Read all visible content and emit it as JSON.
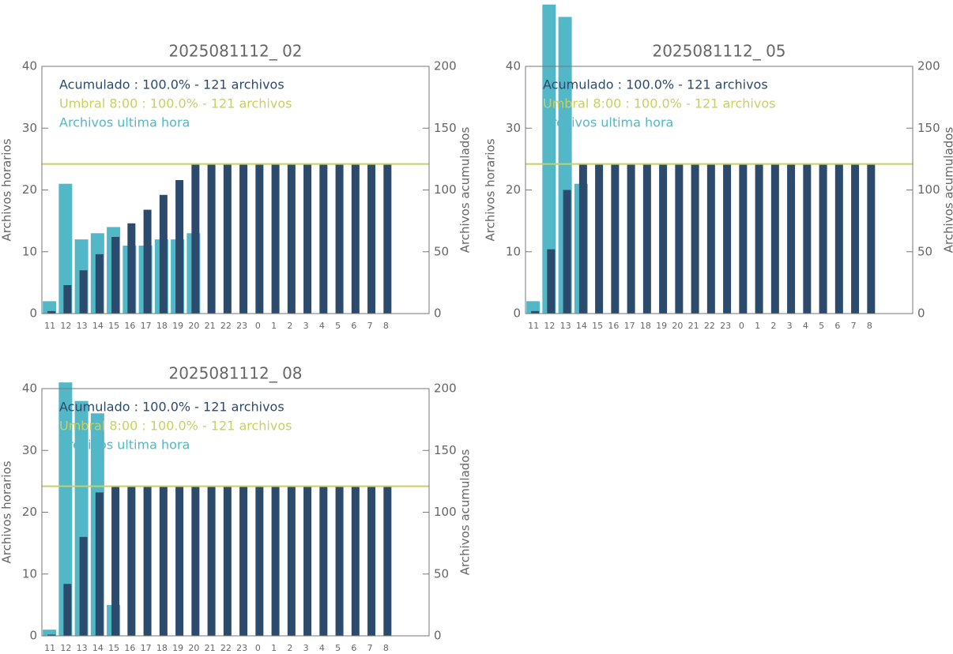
{
  "chart_data": [
    {
      "type": "bar",
      "title": "2025081112_ 02",
      "categories": [
        "11",
        "12",
        "13",
        "14",
        "15",
        "16",
        "17",
        "18",
        "19",
        "20",
        "21",
        "22",
        "23",
        "0",
        "1",
        "2",
        "3",
        "4",
        "5",
        "6",
        "7",
        "8"
      ],
      "series": [
        {
          "name": "Acumulado : 100.0% - 121 archivos",
          "color": "#2c4a6b",
          "axis": "y2",
          "values": [
            2,
            23,
            35,
            48,
            62,
            73,
            84,
            96,
            108,
            121,
            121,
            121,
            121,
            121,
            121,
            121,
            121,
            121,
            121,
            121,
            121,
            121
          ]
        },
        {
          "name": "Archivos ultima hora",
          "color": "#52b8c8",
          "values": [
            2,
            21,
            12,
            13,
            14,
            11,
            11,
            12,
            12,
            13,
            0,
            0,
            0,
            0,
            0,
            0,
            0,
            0,
            0,
            0,
            0,
            0
          ]
        }
      ],
      "threshold": {
        "label": "Umbral 8:00 : 100.0% - 121 archivos",
        "value": 121,
        "axis": "y2",
        "color": "#c8d060"
      },
      "ylabel": "Archivos horarios",
      "y2label": "Archivos acumulados",
      "ylim": [
        0,
        40
      ],
      "yticks": [
        0,
        10,
        20,
        30,
        40
      ],
      "y2lim": [
        0,
        200
      ],
      "y2ticks": [
        0,
        50,
        100,
        150,
        200
      ]
    },
    {
      "type": "bar",
      "title": "2025081112_ 05",
      "categories": [
        "11",
        "12",
        "13",
        "14",
        "15",
        "16",
        "17",
        "18",
        "19",
        "20",
        "21",
        "22",
        "23",
        "0",
        "1",
        "2",
        "3",
        "4",
        "5",
        "6",
        "7",
        "8"
      ],
      "series": [
        {
          "name": "Acumulado : 100.0% - 121 archivos",
          "color": "#2c4a6b",
          "axis": "y2",
          "values": [
            2,
            52,
            100,
            121,
            121,
            121,
            121,
            121,
            121,
            121,
            121,
            121,
            121,
            121,
            121,
            121,
            121,
            121,
            121,
            121,
            121,
            121
          ]
        },
        {
          "name": "Archivos ultima hora",
          "color": "#52b8c8",
          "values": [
            2,
            50,
            48,
            21,
            0,
            0,
            0,
            0,
            0,
            0,
            0,
            0,
            0,
            0,
            0,
            0,
            0,
            0,
            0,
            0,
            0,
            0
          ]
        }
      ],
      "threshold": {
        "label": "Umbral 8:00 : 100.0% - 121 archivos",
        "value": 121,
        "axis": "y2",
        "color": "#c8d060"
      },
      "ylabel": "Archivos horarios",
      "y2label": "Archivos acumulados",
      "ylim": [
        0,
        40
      ],
      "yticks": [
        0,
        10,
        20,
        30,
        40
      ],
      "y2lim": [
        0,
        200
      ],
      "y2ticks": [
        0,
        50,
        100,
        150,
        200
      ]
    },
    {
      "type": "bar",
      "title": "2025081112_ 08",
      "categories": [
        "11",
        "12",
        "13",
        "14",
        "15",
        "16",
        "17",
        "18",
        "19",
        "20",
        "21",
        "22",
        "23",
        "0",
        "1",
        "2",
        "3",
        "4",
        "5",
        "6",
        "7",
        "8"
      ],
      "series": [
        {
          "name": "Acumulado : 100.0% - 121 archivos",
          "color": "#2c4a6b",
          "axis": "y2",
          "values": [
            1,
            42,
            80,
            116,
            121,
            121,
            121,
            121,
            121,
            121,
            121,
            121,
            121,
            121,
            121,
            121,
            121,
            121,
            121,
            121,
            121,
            121
          ]
        },
        {
          "name": "Archivos ultima hora",
          "color": "#52b8c8",
          "values": [
            1,
            41,
            38,
            36,
            5,
            0,
            0,
            0,
            0,
            0,
            0,
            0,
            0,
            0,
            0,
            0,
            0,
            0,
            0,
            0,
            0,
            0
          ]
        }
      ],
      "threshold": {
        "label": "Umbral 8:00 : 100.0% - 121 archivos",
        "value": 121,
        "axis": "y2",
        "color": "#c8d060"
      },
      "ylabel": "Archivos horarios",
      "y2label": "Archivos acumulados",
      "ylim": [
        0,
        40
      ],
      "yticks": [
        0,
        10,
        20,
        30,
        40
      ],
      "y2lim": [
        0,
        200
      ],
      "y2ticks": [
        0,
        50,
        100,
        150,
        200
      ]
    }
  ]
}
